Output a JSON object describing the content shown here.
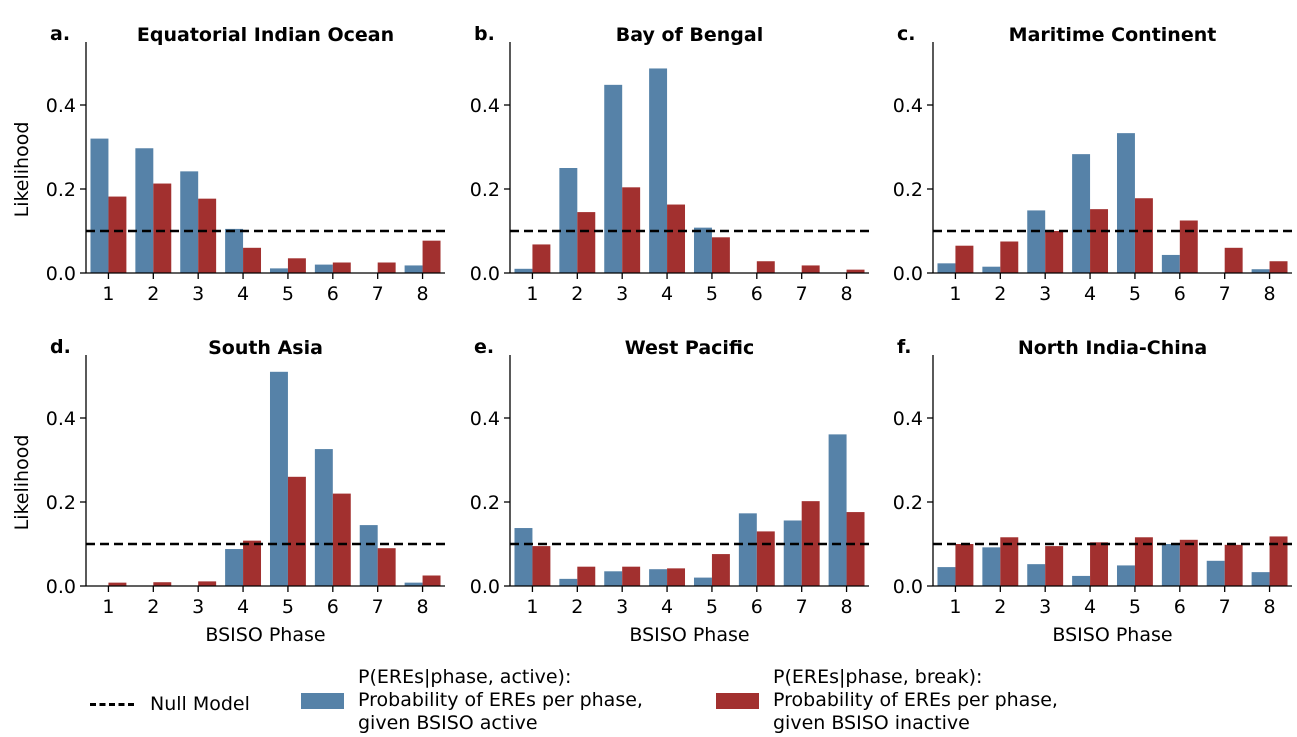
{
  "colors": {
    "active": "#5682a8",
    "break": "#a2302f",
    "null_line": "#000000"
  },
  "legend": {
    "null_model": "Null Model",
    "active_line1": "P(EREs|phase, active):",
    "active_line2": "Probability of EREs per phase,",
    "active_line3": "given BSISO active",
    "break_line1": "P(EREs|phase, break):",
    "break_line2": "Probability of EREs per phase,",
    "break_line3": "given BSISO inactive"
  },
  "chart_data": [
    {
      "type": "bar",
      "panel_letter": "a.",
      "title": "Equatorial Indian Ocean",
      "categories": [
        "1",
        "2",
        "3",
        "4",
        "5",
        "6",
        "7",
        "8"
      ],
      "series": [
        {
          "key": "active",
          "values": [
            0.32,
            0.297,
            0.242,
            0.105,
            0.011,
            0.02,
            0.0,
            0.018
          ]
        },
        {
          "key": "break",
          "values": [
            0.182,
            0.213,
            0.177,
            0.06,
            0.035,
            0.025,
            0.025,
            0.077
          ]
        }
      ],
      "null_model": 0.1,
      "xlabel": "",
      "ylabel": "Likelihood",
      "ylim": [
        0,
        0.55
      ],
      "yticks": [
        "0.0",
        "0.2",
        "0.4"
      ]
    },
    {
      "type": "bar",
      "panel_letter": "b.",
      "title": "Bay of Bengal",
      "categories": [
        "1",
        "2",
        "3",
        "4",
        "5",
        "6",
        "7",
        "8"
      ],
      "series": [
        {
          "key": "active",
          "values": [
            0.01,
            0.25,
            0.448,
            0.487,
            0.108,
            0.0,
            0.0,
            0.0
          ]
        },
        {
          "key": "break",
          "values": [
            0.068,
            0.145,
            0.204,
            0.163,
            0.085,
            0.028,
            0.018,
            0.008
          ]
        }
      ],
      "null_model": 0.1,
      "xlabel": "",
      "ylabel": "",
      "ylim": [
        0,
        0.55
      ],
      "yticks": [
        "0.0",
        "0.2",
        "0.4"
      ]
    },
    {
      "type": "bar",
      "panel_letter": "c.",
      "title": "Maritime Continent",
      "categories": [
        "1",
        "2",
        "3",
        "4",
        "5",
        "6",
        "7",
        "8"
      ],
      "series": [
        {
          "key": "active",
          "values": [
            0.023,
            0.015,
            0.149,
            0.283,
            0.333,
            0.043,
            0.0,
            0.009
          ]
        },
        {
          "key": "break",
          "values": [
            0.065,
            0.075,
            0.1,
            0.152,
            0.178,
            0.125,
            0.06,
            0.028
          ]
        }
      ],
      "null_model": 0.1,
      "xlabel": "",
      "ylabel": "",
      "ylim": [
        0,
        0.55
      ],
      "yticks": [
        "0.0",
        "0.2",
        "0.4"
      ]
    },
    {
      "type": "bar",
      "panel_letter": "d.",
      "title": "South Asia",
      "categories": [
        "1",
        "2",
        "3",
        "4",
        "5",
        "6",
        "7",
        "8"
      ],
      "series": [
        {
          "key": "active",
          "values": [
            0.0,
            0.0,
            0.0,
            0.088,
            0.51,
            0.326,
            0.145,
            0.008
          ]
        },
        {
          "key": "break",
          "values": [
            0.008,
            0.009,
            0.011,
            0.108,
            0.26,
            0.22,
            0.09,
            0.025
          ]
        }
      ],
      "null_model": 0.1,
      "xlabel": "BSISO Phase",
      "ylabel": "Likelihood",
      "ylim": [
        0,
        0.55
      ],
      "yticks": [
        "0.0",
        "0.2",
        "0.4"
      ]
    },
    {
      "type": "bar",
      "panel_letter": "e.",
      "title": "West Pacific",
      "categories": [
        "1",
        "2",
        "3",
        "4",
        "5",
        "6",
        "7",
        "8"
      ],
      "series": [
        {
          "key": "active",
          "values": [
            0.138,
            0.017,
            0.035,
            0.04,
            0.02,
            0.173,
            0.156,
            0.361
          ]
        },
        {
          "key": "break",
          "values": [
            0.095,
            0.046,
            0.046,
            0.042,
            0.076,
            0.13,
            0.202,
            0.176
          ]
        }
      ],
      "null_model": 0.1,
      "xlabel": "BSISO Phase",
      "ylabel": "",
      "ylim": [
        0,
        0.55
      ],
      "yticks": [
        "0.0",
        "0.2",
        "0.4"
      ]
    },
    {
      "type": "bar",
      "panel_letter": "f.",
      "title": "North India-China",
      "categories": [
        "1",
        "2",
        "3",
        "4",
        "5",
        "6",
        "7",
        "8"
      ],
      "series": [
        {
          "key": "active",
          "values": [
            0.045,
            0.092,
            0.052,
            0.024,
            0.049,
            0.1,
            0.06,
            0.033
          ]
        },
        {
          "key": "break",
          "values": [
            0.1,
            0.116,
            0.095,
            0.104,
            0.116,
            0.11,
            0.098,
            0.118
          ]
        }
      ],
      "null_model": 0.1,
      "xlabel": "BSISO Phase",
      "ylabel": "",
      "ylim": [
        0,
        0.55
      ],
      "yticks": [
        "0.0",
        "0.2",
        "0.4"
      ]
    }
  ]
}
